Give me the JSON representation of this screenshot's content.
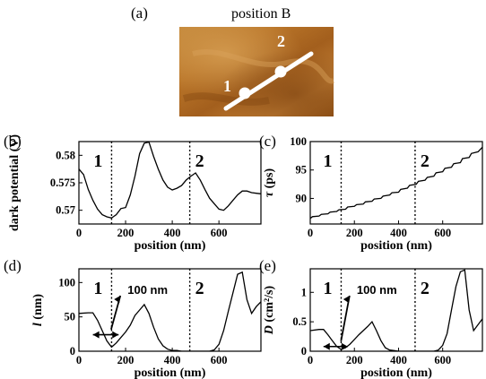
{
  "figure": {
    "panel_a_label": "(a)",
    "panel_a_title": "position B",
    "image_markers": [
      "1",
      "2"
    ],
    "marker_colors": {
      "image_line": "#ffffff",
      "plot_line": "#000000"
    }
  },
  "chart_data": [
    {
      "id": "b",
      "panel_label": "(b)",
      "type": "line",
      "xlabel": "position (nm)",
      "ylabel": "dark potential (V)",
      "xlim": [
        0,
        780
      ],
      "ylim": [
        0.5675,
        0.5825
      ],
      "xticks": [
        0,
        200,
        400,
        600
      ],
      "yticks": [
        0.57,
        0.575,
        0.58
      ],
      "ytick_labels": [
        "0.57",
        "0.575",
        "0.58"
      ],
      "x": [
        0,
        20,
        40,
        60,
        80,
        100,
        120,
        140,
        160,
        180,
        200,
        220,
        240,
        260,
        280,
        300,
        320,
        340,
        360,
        380,
        400,
        420,
        440,
        460,
        480,
        500,
        520,
        540,
        560,
        580,
        600,
        620,
        640,
        660,
        680,
        700,
        720,
        740,
        760,
        780
      ],
      "values": [
        0.5775,
        0.5765,
        0.5738,
        0.5718,
        0.5702,
        0.5692,
        0.5688,
        0.5686,
        0.5692,
        0.5703,
        0.5705,
        0.5728,
        0.5762,
        0.5803,
        0.5822,
        0.5824,
        0.5798,
        0.5775,
        0.5755,
        0.5742,
        0.5737,
        0.574,
        0.5745,
        0.5755,
        0.5762,
        0.5768,
        0.5755,
        0.5738,
        0.5722,
        0.5712,
        0.5702,
        0.57,
        0.5708,
        0.5718,
        0.5728,
        0.5735,
        0.5735,
        0.5732,
        0.5731,
        0.573
      ],
      "vlines": [
        {
          "x": 140,
          "label": "1"
        },
        {
          "x": 475,
          "label": "2"
        }
      ],
      "grid": false
    },
    {
      "id": "c",
      "panel_label": "(c)",
      "type": "line",
      "xlabel": "position (nm)",
      "ylabel": "τ (ps)",
      "xlim": [
        0,
        780
      ],
      "ylim": [
        85.5,
        100
      ],
      "xticks": [
        0,
        200,
        400,
        600
      ],
      "yticks": [
        90,
        95,
        100
      ],
      "ytick_labels": [
        "90",
        "95",
        "100"
      ],
      "x": [
        0,
        10,
        40,
        50,
        80,
        90,
        120,
        130,
        160,
        170,
        200,
        210,
        240,
        250,
        280,
        290,
        320,
        330,
        360,
        370,
        400,
        410,
        440,
        450,
        480,
        490,
        520,
        530,
        560,
        570,
        600,
        610,
        640,
        650,
        680,
        690,
        720,
        730,
        760,
        780
      ],
      "values": [
        86.5,
        86.8,
        86.9,
        87.2,
        87.3,
        87.6,
        87.7,
        88.0,
        88.1,
        88.5,
        88.6,
        88.9,
        89.0,
        89.4,
        89.5,
        89.9,
        90.0,
        90.4,
        90.6,
        91.0,
        91.1,
        91.6,
        91.8,
        92.3,
        92.5,
        93.0,
        93.2,
        93.7,
        93.9,
        94.5,
        94.7,
        95.3,
        95.5,
        96.1,
        96.3,
        97.0,
        97.2,
        97.9,
        98.2,
        99.0
      ],
      "vlines": [
        {
          "x": 140,
          "label": "1"
        },
        {
          "x": 475,
          "label": "2"
        }
      ],
      "grid": false
    },
    {
      "id": "d",
      "panel_label": "(d)",
      "type": "line",
      "xlabel": "position (nm)",
      "ylabel": "l (nm)",
      "xlim": [
        0,
        780
      ],
      "ylim": [
        0,
        120
      ],
      "xticks": [
        0,
        200,
        400,
        600
      ],
      "yticks": [
        0,
        50,
        100
      ],
      "ytick_labels": [
        "0",
        "50",
        "100"
      ],
      "x": [
        0,
        40,
        60,
        80,
        100,
        120,
        140,
        160,
        180,
        200,
        220,
        240,
        260,
        280,
        300,
        320,
        340,
        360,
        380,
        400,
        420,
        440,
        460,
        480,
        500,
        520,
        540,
        560,
        580,
        600,
        620,
        640,
        660,
        680,
        700,
        720,
        740,
        760,
        780
      ],
      "values": [
        55,
        56,
        56,
        45,
        30,
        15,
        6,
        12,
        20,
        28,
        38,
        52,
        60,
        68,
        55,
        35,
        18,
        8,
        3,
        1,
        1,
        0,
        0,
        0,
        0,
        0,
        0,
        0,
        2,
        10,
        30,
        58,
        85,
        112,
        115,
        75,
        55,
        65,
        72
      ],
      "vlines": [
        {
          "x": 140,
          "label": "1"
        },
        {
          "x": 475,
          "label": "2"
        }
      ],
      "span": {
        "x_from": 60,
        "x_to": 170,
        "y": 24,
        "label": "100 nm"
      },
      "grid": false
    },
    {
      "id": "e",
      "panel_label": "(e)",
      "type": "line",
      "xlabel": "position (nm)",
      "ylabel": "D (cm²/s)",
      "xlim": [
        0,
        780
      ],
      "ylim": [
        0,
        1.4
      ],
      "xticks": [
        0,
        200,
        400,
        600
      ],
      "yticks": [
        0,
        0.5,
        1
      ],
      "ytick_labels": [
        "0",
        "0.5",
        "1"
      ],
      "x": [
        0,
        40,
        60,
        80,
        100,
        120,
        140,
        160,
        180,
        200,
        220,
        240,
        260,
        280,
        300,
        320,
        340,
        360,
        380,
        400,
        420,
        440,
        460,
        480,
        500,
        520,
        540,
        560,
        580,
        600,
        620,
        640,
        660,
        680,
        700,
        720,
        740,
        760,
        780
      ],
      "values": [
        0.35,
        0.37,
        0.37,
        0.28,
        0.18,
        0.08,
        0.03,
        0.06,
        0.12,
        0.2,
        0.28,
        0.35,
        0.42,
        0.5,
        0.35,
        0.18,
        0.06,
        0.02,
        0.01,
        0.0,
        0.0,
        0.0,
        0.0,
        0.0,
        0.0,
        0.0,
        0.0,
        0.0,
        0.02,
        0.1,
        0.3,
        0.7,
        1.1,
        1.35,
        1.38,
        0.7,
        0.35,
        0.45,
        0.55
      ],
      "vlines": [
        {
          "x": 140,
          "label": "1"
        },
        {
          "x": 475,
          "label": "2"
        }
      ],
      "span": {
        "x_from": 60,
        "x_to": 170,
        "y": 0.08,
        "label": "100 nm"
      },
      "grid": false
    }
  ]
}
